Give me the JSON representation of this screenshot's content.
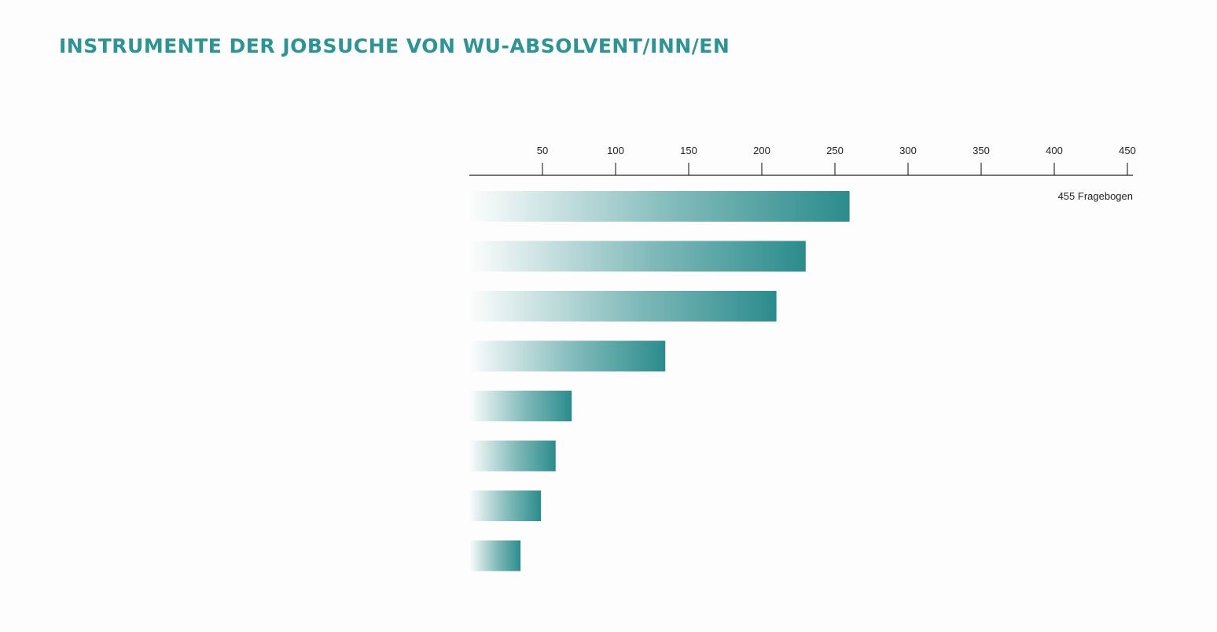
{
  "chart_data": {
    "type": "bar",
    "orientation": "horizontal",
    "title": "INSTRUMENTE DER JOBSUCHE VON WU-ABSOLVENT/INN/EN",
    "note": "455 Fragebogen",
    "xlim": [
      0,
      450
    ],
    "ticks": [
      50,
      100,
      150,
      200,
      250,
      300,
      350,
      400,
      450
    ],
    "categories": [
      "",
      "",
      "",
      "",
      "",
      "",
      "",
      ""
    ],
    "values": [
      260,
      230,
      210,
      134,
      70,
      59,
      49,
      35
    ],
    "grid": false,
    "legend": "none"
  },
  "colors": {
    "title": "#2b9596",
    "bar": "#2b8c8c",
    "axis": "#222222"
  }
}
